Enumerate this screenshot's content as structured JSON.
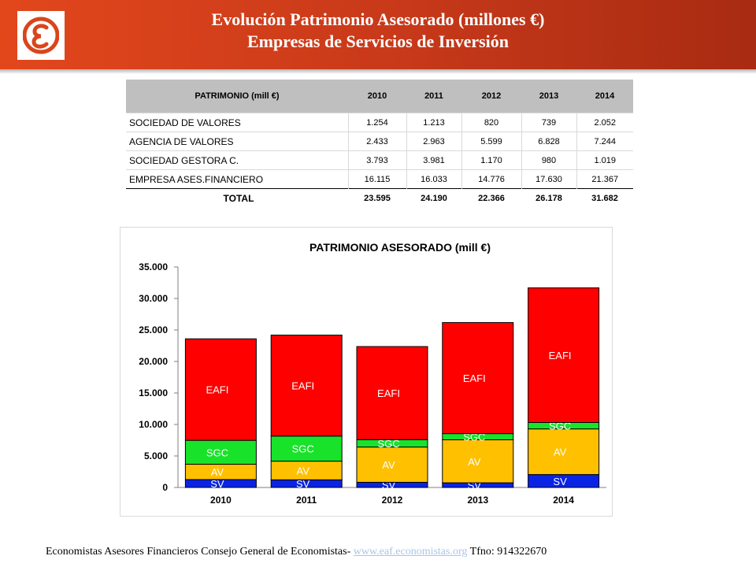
{
  "header": {
    "title_line1": "Evolución Patrimonio Asesorado (millones €)",
    "title_line2": "Empresas de Servicios de Inversión",
    "logo_glyph": "Ɛ",
    "color_start": "#e2471c",
    "color_end": "#a82b12"
  },
  "table": {
    "header_label": "PATRIMONIO (mill €)",
    "years": [
      "2010",
      "2011",
      "2012",
      "2013",
      "2014"
    ],
    "rows": [
      {
        "label": "SOCIEDAD DE VALORES",
        "values": [
          "1.254",
          "1.213",
          "820",
          "739",
          "2.052"
        ]
      },
      {
        "label": "AGENCIA DE VALORES",
        "values": [
          "2.433",
          "2.963",
          "5.599",
          "6.828",
          "7.244"
        ]
      },
      {
        "label": "SOCIEDAD GESTORA C.",
        "values": [
          "3.793",
          "3.981",
          "1.170",
          "980",
          "1.019"
        ]
      },
      {
        "label": "EMPRESA ASES.FINANCIERO",
        "values": [
          "16.115",
          "16.033",
          "14.776",
          "17.630",
          "21.367"
        ]
      }
    ],
    "total": {
      "label": "TOTAL",
      "values": [
        "23.595",
        "24.190",
        "22.366",
        "26.178",
        "31.682"
      ]
    }
  },
  "chart_data": {
    "type": "bar",
    "stacked": true,
    "title": "PATRIMONIO ASESORADO (mill €)",
    "categories": [
      "2010",
      "2011",
      "2012",
      "2013",
      "2014"
    ],
    "series": [
      {
        "name": "SV",
        "color": "#0a24e6",
        "values": [
          1254,
          1213,
          820,
          739,
          2052
        ]
      },
      {
        "name": "AV",
        "color": "#ffc000",
        "values": [
          2433,
          2963,
          5599,
          6828,
          7244
        ]
      },
      {
        "name": "SGC",
        "color": "#19e22a",
        "values": [
          3793,
          3981,
          1170,
          980,
          1019
        ]
      },
      {
        "name": "EAFI",
        "color": "#ff0000",
        "values": [
          16115,
          16033,
          14776,
          17630,
          21367
        ]
      }
    ],
    "ylim": [
      0,
      35000
    ],
    "yticks": [
      0,
      5000,
      10000,
      15000,
      20000,
      25000,
      30000,
      35000
    ],
    "ytick_labels": [
      "0",
      "5.000",
      "10.000",
      "15.000",
      "20.000",
      "25.000",
      "30.000",
      "35.000"
    ],
    "grid": false,
    "legend": "none"
  },
  "footer": {
    "text": "Economistas Asesores Financieros Consejo General de Economistas-",
    "link": "www.eaf.economistas.org",
    "phone": "Tfno: 914322670"
  }
}
